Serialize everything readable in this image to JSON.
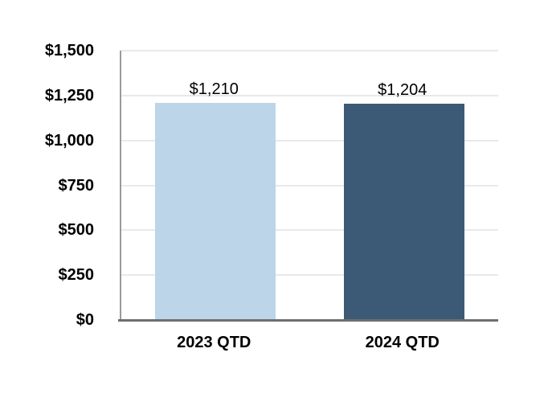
{
  "chart_data": {
    "type": "bar",
    "title": "",
    "xlabel": "",
    "ylabel": "",
    "categories": [
      "2023 QTD",
      "2024 QTD"
    ],
    "values": [
      1210,
      1204
    ],
    "value_labels": [
      "$1,210",
      "$1,204"
    ],
    "ylim": [
      0,
      1500
    ],
    "ytick_interval": 250,
    "ytick_labels": [
      "$0",
      "$250",
      "$500",
      "$750",
      "$1,000",
      "$1,250",
      "$1,500"
    ],
    "grid": true,
    "legend": "none",
    "colors": {
      "bars": [
        "#bcd5e8",
        "#3c5a75"
      ],
      "gridline": "#e9e9eb",
      "y_axis_line": "#9a9a9a",
      "x_axis_line": "#6f6f6f",
      "text": "#000000",
      "background": "#ffffff"
    }
  }
}
